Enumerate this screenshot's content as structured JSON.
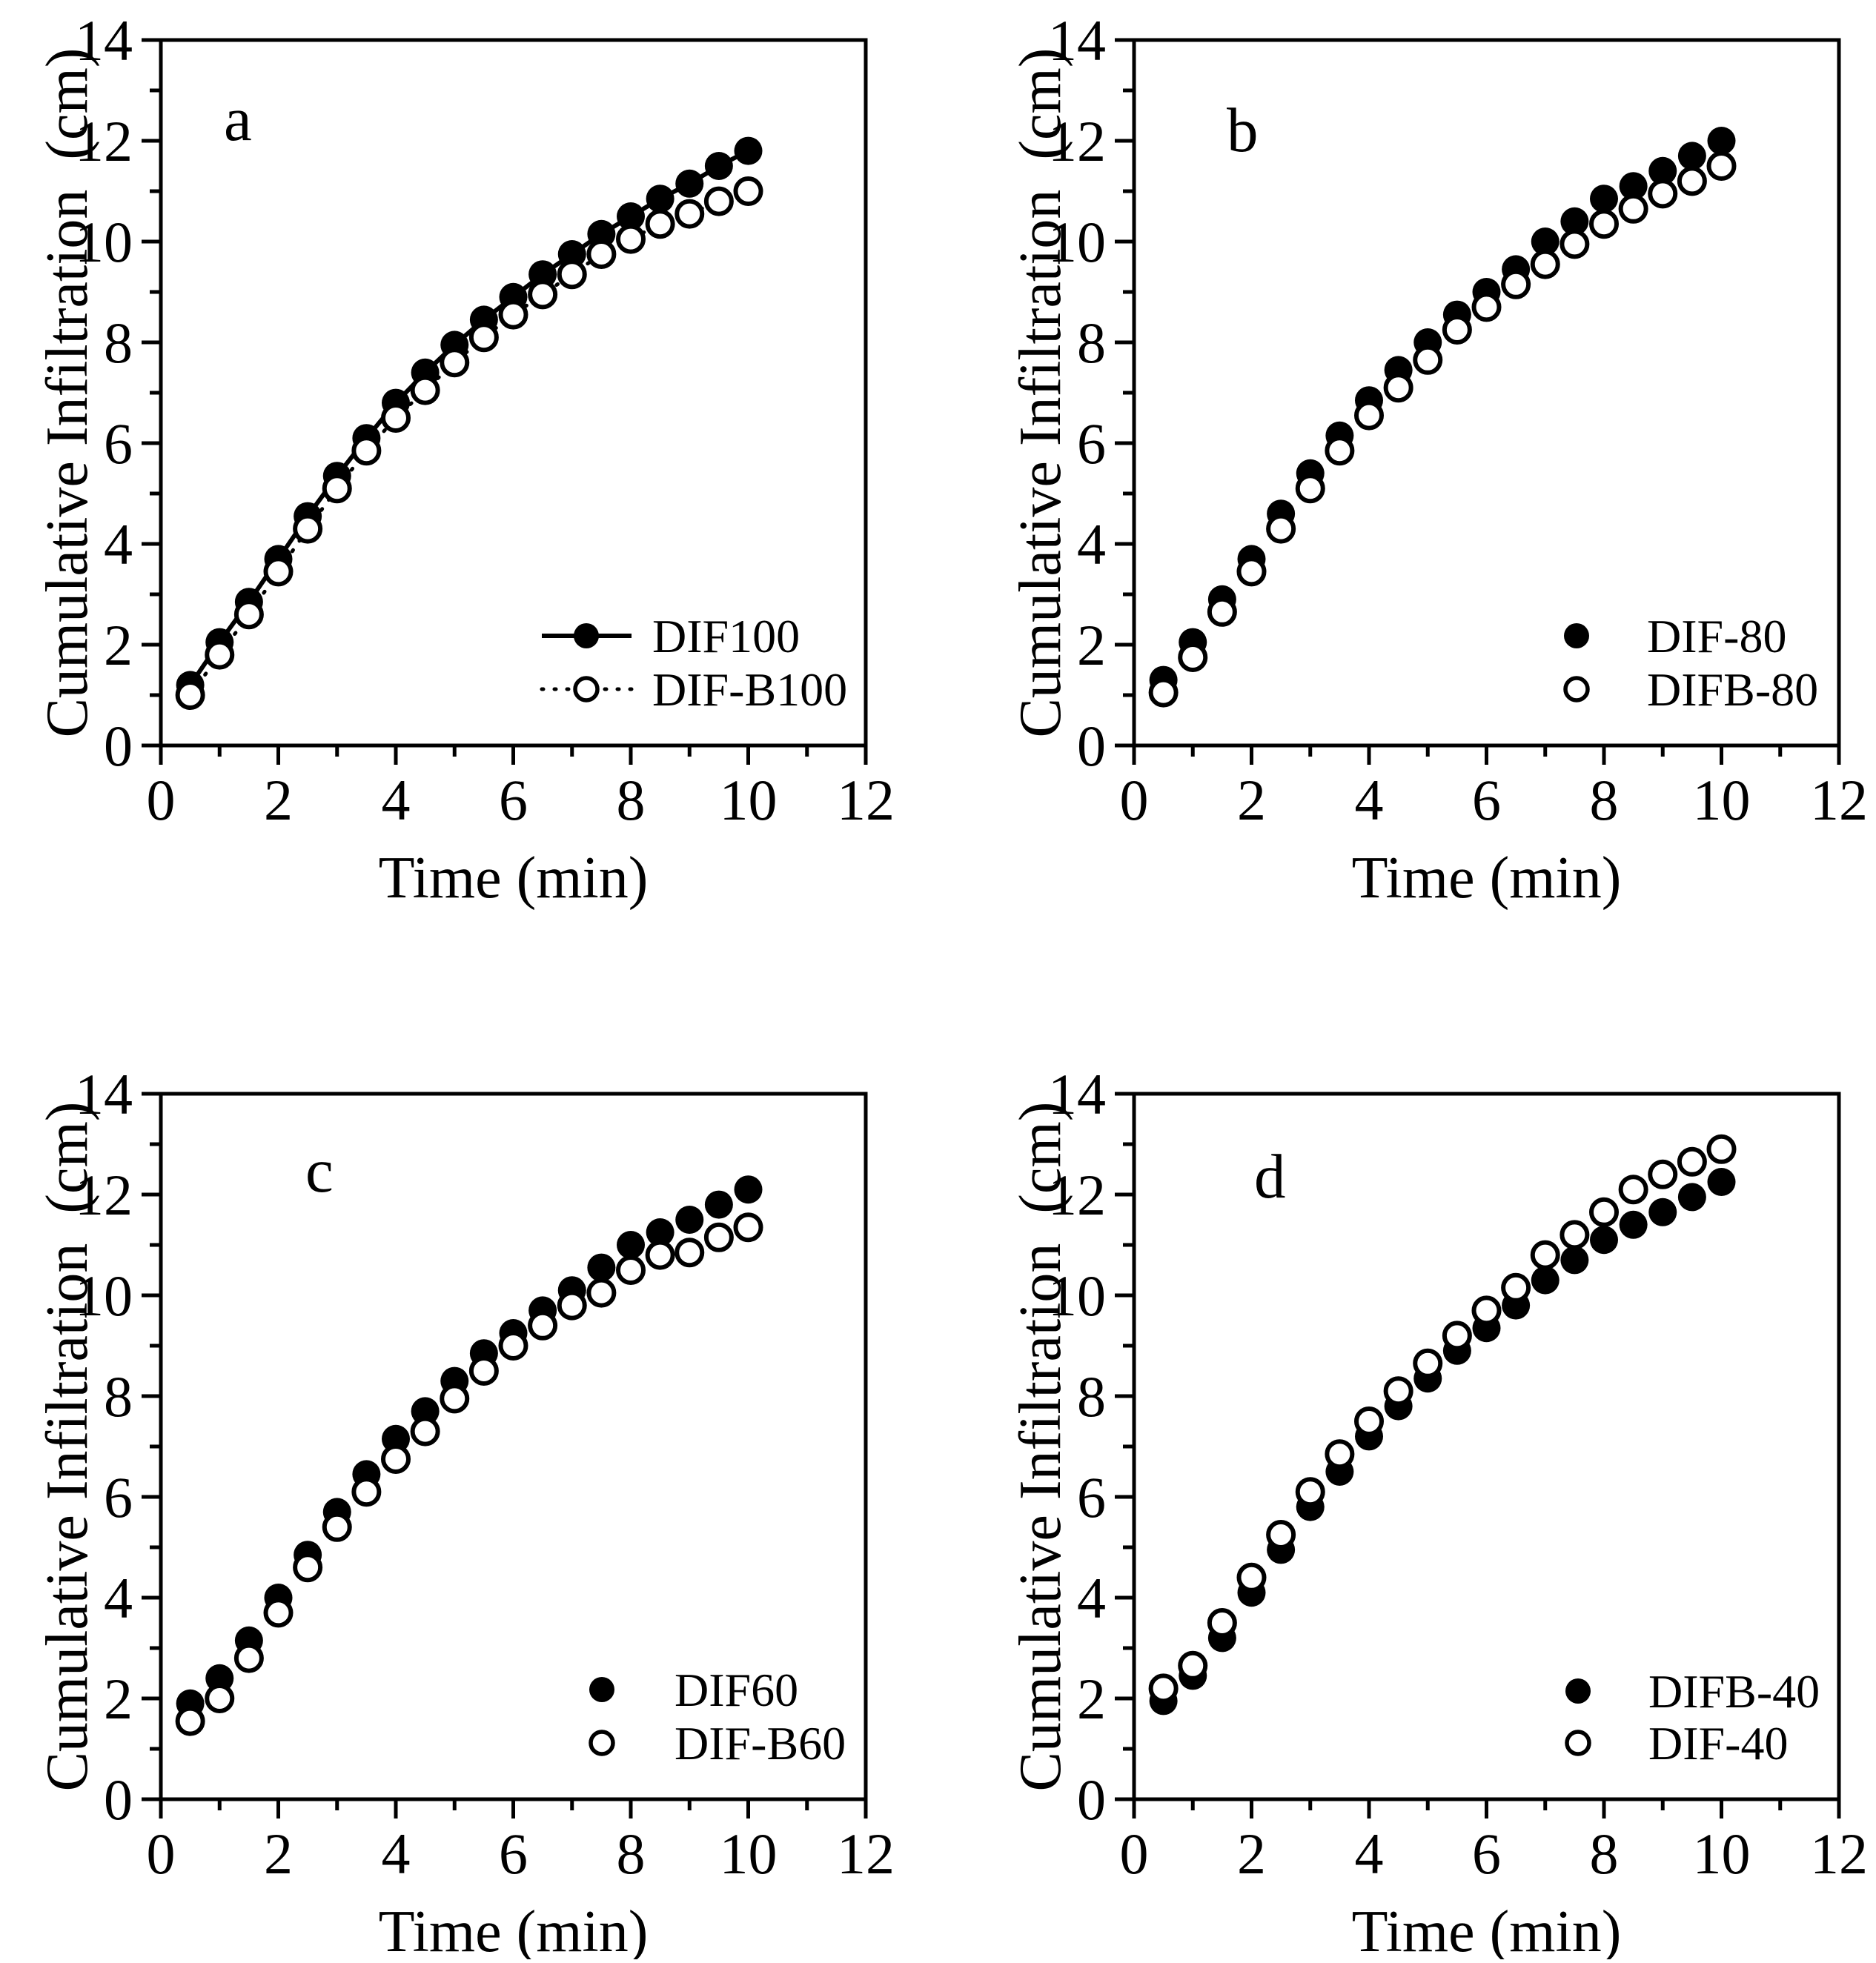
{
  "figure": {
    "description": "Four-panel scatter figure of cumulative infiltration versus time",
    "background_color": "#ffffff",
    "foreground_color": "#000000"
  },
  "chart_data": {
    "type": "scatter",
    "layout": "2x2 panels",
    "xlabel": "Time (min)",
    "ylabel": "Cumulative Infiltration  (cm)",
    "xlim": [
      0,
      12
    ],
    "ylim": [
      0,
      14
    ],
    "xticks": [
      0,
      2,
      4,
      6,
      8,
      10,
      12
    ],
    "yticks": [
      0,
      2,
      4,
      6,
      8,
      10,
      12,
      14
    ],
    "xticks_minor": [
      1,
      3,
      5,
      7,
      9,
      11
    ],
    "yticks_minor": [
      1,
      3,
      5,
      7,
      9,
      11,
      13
    ],
    "grid": false,
    "x": [
      0.5,
      1,
      1.5,
      2,
      2.5,
      3,
      3.5,
      4,
      4.5,
      5,
      5.5,
      6,
      6.5,
      7,
      7.5,
      8,
      8.5,
      9,
      9.5,
      10
    ],
    "panels": [
      {
        "label": "a",
        "legend_position": "lower right",
        "series": [
          {
            "name": "DIF100",
            "marker": "filled",
            "line": "solid",
            "values": [
              1.2,
              2.05,
              2.85,
              3.7,
              4.55,
              5.35,
              6.1,
              6.8,
              7.4,
              7.95,
              8.45,
              8.9,
              9.35,
              9.75,
              10.15,
              10.5,
              10.85,
              11.15,
              11.5,
              11.8
            ]
          },
          {
            "name": "DIF-B100",
            "marker": "open",
            "line": "dotted",
            "values": [
              1.0,
              1.8,
              2.6,
              3.45,
              4.3,
              5.1,
              5.85,
              6.5,
              7.05,
              7.6,
              8.1,
              8.55,
              8.95,
              9.35,
              9.75,
              10.05,
              10.35,
              10.55,
              10.8,
              11.0
            ]
          }
        ]
      },
      {
        "label": "b",
        "legend_position": "lower right",
        "series": [
          {
            "name": "DIF-80",
            "marker": "filled",
            "line": "none",
            "values": [
              1.3,
              2.05,
              2.9,
              3.7,
              4.6,
              5.4,
              6.15,
              6.85,
              7.45,
              8.0,
              8.55,
              9.0,
              9.45,
              10.0,
              10.4,
              10.85,
              11.1,
              11.4,
              11.7,
              12.0
            ]
          },
          {
            "name": "DIFB-80",
            "marker": "open",
            "line": "none",
            "values": [
              1.05,
              1.75,
              2.65,
              3.45,
              4.3,
              5.1,
              5.85,
              6.55,
              7.1,
              7.65,
              8.25,
              8.7,
              9.15,
              9.55,
              9.95,
              10.35,
              10.65,
              10.95,
              11.2,
              11.5
            ]
          }
        ]
      },
      {
        "label": "c",
        "legend_position": "lower right",
        "series": [
          {
            "name": "DIF60",
            "marker": "filled",
            "line": "none",
            "values": [
              1.9,
              2.4,
              3.15,
              4.0,
              4.85,
              5.7,
              6.45,
              7.15,
              7.7,
              8.3,
              8.85,
              9.25,
              9.7,
              10.1,
              10.55,
              11.0,
              11.25,
              11.5,
              11.8,
              12.1
            ]
          },
          {
            "name": "DIF-B60",
            "marker": "open",
            "line": "none",
            "values": [
              1.55,
              2.0,
              2.8,
              3.7,
              4.6,
              5.4,
              6.1,
              6.75,
              7.3,
              7.95,
              8.5,
              9.0,
              9.4,
              9.8,
              10.05,
              10.5,
              10.8,
              10.85,
              11.15,
              11.35
            ]
          }
        ]
      },
      {
        "label": "d",
        "legend_position": "lower right",
        "series": [
          {
            "name": "DIFB-40",
            "marker": "filled",
            "line": "none",
            "values": [
              1.95,
              2.45,
              3.2,
              4.1,
              4.95,
              5.8,
              6.5,
              7.2,
              7.8,
              8.35,
              8.9,
              9.35,
              9.8,
              10.3,
              10.7,
              11.1,
              11.4,
              11.65,
              11.95,
              12.25
            ]
          },
          {
            "name": "DIF-40",
            "marker": "open",
            "line": "none",
            "values": [
              2.2,
              2.65,
              3.5,
              4.4,
              5.25,
              6.1,
              6.85,
              7.5,
              8.1,
              8.65,
              9.2,
              9.7,
              10.15,
              10.8,
              11.2,
              11.65,
              12.1,
              12.4,
              12.65,
              12.9
            ]
          }
        ]
      }
    ]
  }
}
